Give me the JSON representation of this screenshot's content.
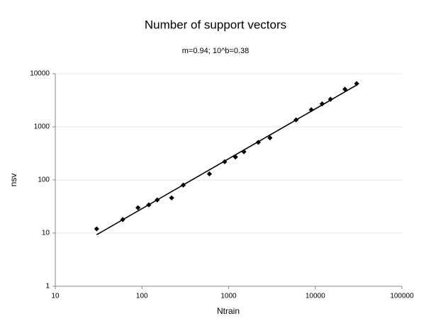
{
  "chart_data": {
    "type": "scatter",
    "title": "Number of support vectors",
    "subtitle": "m=0.94; 10^b=0.38",
    "x_label": "Ntrain",
    "y_label": "nsv",
    "log_x": true,
    "log_y": true,
    "grid": true,
    "xlim": [
      10,
      100000
    ],
    "xticks": [
      10,
      100,
      1000,
      10000,
      100000
    ],
    "ylim": [
      1,
      10000
    ],
    "yticks": [
      1,
      10,
      100,
      1000,
      10000
    ],
    "color": "#000000",
    "x": [
      30,
      60,
      90,
      120,
      150,
      220,
      300,
      600,
      900,
      1200,
      1500,
      2200,
      3000,
      6000,
      9000,
      12000,
      15000,
      22000,
      30000
    ],
    "values": [
      12,
      18,
      30,
      34,
      42,
      46,
      80,
      130,
      220,
      270,
      340,
      510,
      620,
      1350,
      2100,
      2700,
      3300,
      5100,
      6500
    ],
    "fit_line": {
      "x": [
        30,
        30000
      ],
      "values": [
        9.3,
        6100
      ],
      "color": "#000000"
    }
  }
}
